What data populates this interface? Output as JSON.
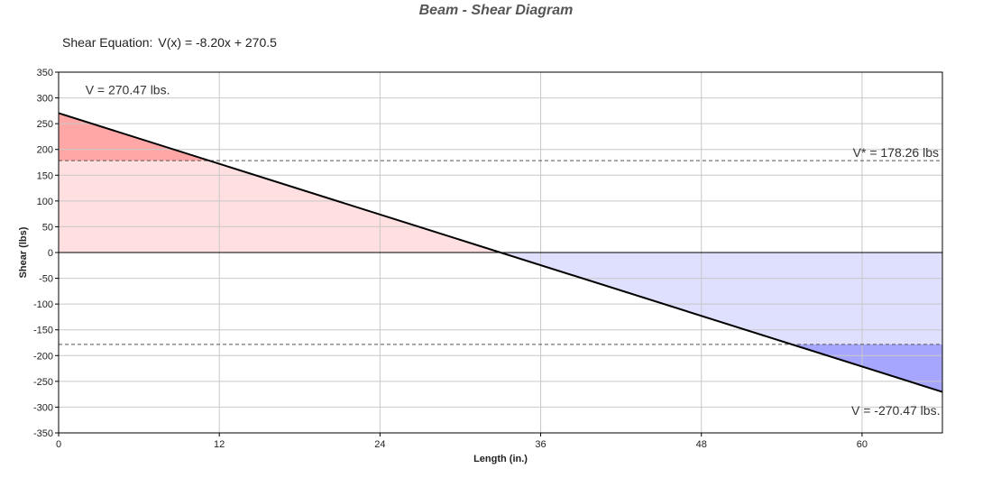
{
  "chart_data": {
    "type": "area",
    "title": "Beam - Shear Diagram",
    "equation_label": "Shear Equation:",
    "equation": "V(x) = -8.20x + 270.5",
    "xlabel": "Length (in.)",
    "ylabel": "Shear (lbs)",
    "xlim": [
      0,
      66
    ],
    "ylim": [
      -350,
      350
    ],
    "x_ticks": [
      0,
      12,
      24,
      36,
      48,
      60
    ],
    "y_ticks": [
      350,
      300,
      250,
      200,
      150,
      100,
      50,
      0,
      -50,
      -100,
      -150,
      -200,
      -250,
      -300,
      -350
    ],
    "grid": true,
    "series": [
      {
        "x": [
          0,
          66
        ],
        "y": [
          270.47,
          -270.47
        ]
      }
    ],
    "reference_lines": [
      {
        "y": 178.26,
        "label": "V* = 178.26 lbs"
      },
      {
        "y": -178.26,
        "label": ""
      }
    ],
    "annotations": [
      {
        "text": "V = 270.47 lbs.",
        "x": 2,
        "y": 307
      },
      {
        "text": "V = -270.47 lbs.",
        "x": 59.2,
        "y": -315
      }
    ],
    "colors": {
      "positive_light": "#ffdfdf",
      "positive_dark": "#ffa6a6",
      "negative_light": "#dfdffe",
      "negative_dark": "#a6a6fe",
      "line": "#000000",
      "grid": "#c8c8c8"
    }
  }
}
